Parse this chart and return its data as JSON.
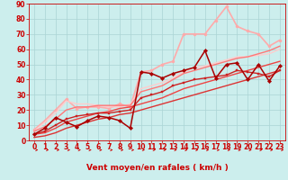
{
  "background_color": "#cceeed",
  "grid_color": "#aad4d4",
  "xlabel": "Vent moyen/en rafales ( km/h )",
  "xlim": [
    -0.5,
    23.5
  ],
  "ylim": [
    0,
    90
  ],
  "xticks": [
    0,
    1,
    2,
    3,
    4,
    5,
    6,
    7,
    8,
    9,
    10,
    11,
    12,
    13,
    14,
    15,
    16,
    17,
    18,
    19,
    20,
    21,
    22,
    23
  ],
  "yticks": [
    0,
    10,
    20,
    30,
    40,
    50,
    60,
    70,
    80,
    90
  ],
  "series": [
    {
      "x": [
        0,
        1,
        2,
        3,
        4,
        5,
        6,
        7,
        8,
        9,
        10,
        11,
        12,
        13,
        14,
        15,
        16,
        17,
        18,
        19,
        20,
        21,
        22,
        23
      ],
      "y": [
        4,
        8,
        15,
        12,
        9,
        13,
        16,
        15,
        13,
        8,
        45,
        44,
        41,
        44,
        46,
        48,
        59,
        41,
        50,
        51,
        40,
        50,
        39,
        49
      ],
      "color": "#aa0000",
      "lw": 1.1,
      "marker": "D",
      "ms": 2.2,
      "zorder": 6
    },
    {
      "x": [
        0,
        1,
        2,
        3,
        4,
        5,
        6,
        7,
        8,
        9,
        10,
        11,
        12,
        13,
        14,
        15,
        16,
        17,
        18,
        19,
        20,
        21,
        22,
        23
      ],
      "y": [
        4,
        6,
        10,
        14,
        16,
        17,
        18,
        18,
        19,
        20,
        28,
        30,
        32,
        36,
        38,
        40,
        41,
        42,
        43,
        46,
        45,
        44,
        42,
        46
      ],
      "color": "#cc2222",
      "lw": 1.0,
      "marker": "s",
      "ms": 1.8,
      "zorder": 5
    },
    {
      "x": [
        0,
        1,
        2,
        3,
        4,
        5,
        6,
        7,
        8,
        9,
        10,
        11,
        12,
        13,
        14,
        15,
        16,
        17,
        18,
        19,
        20,
        21,
        22,
        23
      ],
      "y": [
        2,
        3,
        5,
        8,
        10,
        12,
        14,
        15,
        17,
        18,
        20,
        22,
        24,
        26,
        28,
        30,
        32,
        34,
        36,
        38,
        40,
        42,
        44,
        46
      ],
      "color": "#dd3333",
      "lw": 1.0,
      "marker": null,
      "ms": 0,
      "zorder": 3
    },
    {
      "x": [
        0,
        1,
        2,
        3,
        4,
        5,
        6,
        7,
        8,
        9,
        10,
        11,
        12,
        13,
        14,
        15,
        16,
        17,
        18,
        19,
        20,
        21,
        22,
        23
      ],
      "y": [
        4,
        5,
        8,
        12,
        14,
        16,
        18,
        19,
        21,
        22,
        24,
        26,
        28,
        31,
        34,
        36,
        38,
        40,
        42,
        44,
        46,
        48,
        50,
        52
      ],
      "color": "#ee4444",
      "lw": 1.0,
      "marker": null,
      "ms": 0,
      "zorder": 3
    },
    {
      "x": [
        0,
        1,
        2,
        3,
        4,
        5,
        6,
        7,
        8,
        9,
        10,
        11,
        12,
        13,
        14,
        15,
        16,
        17,
        18,
        19,
        20,
        21,
        22,
        23
      ],
      "y": [
        7,
        13,
        20,
        27,
        21,
        22,
        22,
        21,
        24,
        22,
        45,
        46,
        50,
        52,
        70,
        70,
        70,
        79,
        88,
        75,
        72,
        70,
        62,
        66
      ],
      "color": "#ffaaaa",
      "lw": 1.2,
      "marker": "o",
      "ms": 2.2,
      "zorder": 2
    },
    {
      "x": [
        0,
        1,
        2,
        3,
        4,
        5,
        6,
        7,
        8,
        9,
        10,
        11,
        12,
        13,
        14,
        15,
        16,
        17,
        18,
        19,
        20,
        21,
        22,
        23
      ],
      "y": [
        6,
        9,
        14,
        20,
        22,
        22,
        23,
        23,
        23,
        23,
        32,
        34,
        36,
        40,
        44,
        46,
        48,
        50,
        52,
        54,
        55,
        57,
        59,
        62
      ],
      "color": "#ff7777",
      "lw": 1.0,
      "marker": null,
      "ms": 0,
      "zorder": 3
    },
    {
      "x": [
        0,
        1,
        2,
        3,
        4,
        5,
        6,
        7,
        8,
        9,
        10,
        11,
        12,
        13,
        14,
        15,
        16,
        17,
        18,
        19,
        20,
        21,
        22,
        23
      ],
      "y": [
        6,
        12,
        18,
        26,
        24,
        24,
        23,
        22,
        22,
        24,
        34,
        36,
        38,
        41,
        45,
        48,
        49,
        51,
        53,
        55,
        55,
        56,
        57,
        60
      ],
      "color": "#ffcccc",
      "lw": 1.0,
      "marker": null,
      "ms": 0,
      "zorder": 2
    }
  ],
  "tick_fontsize": 5.5,
  "label_fontsize": 6.5,
  "tick_color": "#cc0000",
  "label_color": "#cc0000",
  "spine_color": "#cc0000"
}
